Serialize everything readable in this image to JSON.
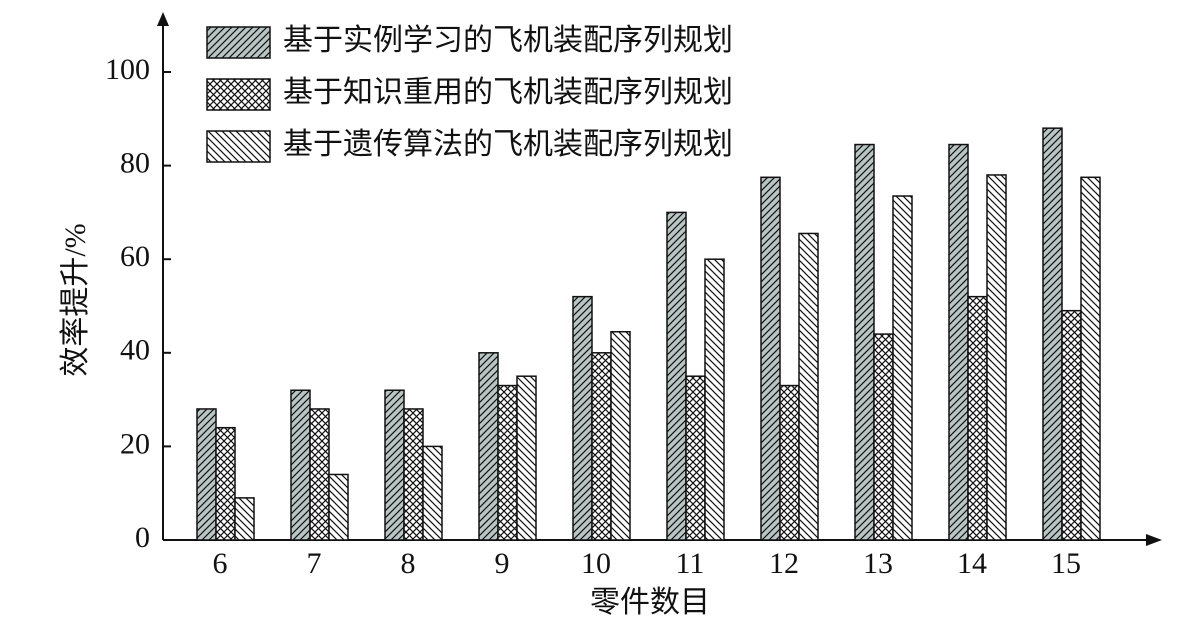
{
  "chart_data": {
    "type": "bar",
    "x_label": "零件数目",
    "y_label": "效率提升/%",
    "categories": [
      "6",
      "7",
      "8",
      "9",
      "10",
      "11",
      "12",
      "13",
      "14",
      "15"
    ],
    "series": [
      {
        "name": "基于实例学习的飞机装配序列规划",
        "color": "#b9c5c5",
        "hatch": "forward",
        "values": [
          28,
          32,
          32,
          40,
          52,
          70,
          77.5,
          84.5,
          84.5,
          88
        ]
      },
      {
        "name": "基于知识重用的飞机装配序列规划",
        "color": "#ffffff",
        "hatch": "cross",
        "values": [
          24,
          28,
          28,
          33,
          40,
          35,
          33,
          44,
          52,
          49
        ]
      },
      {
        "name": "基于遗传算法的飞机装配序列规划",
        "color": "#ffffff",
        "hatch": "backward",
        "values": [
          9,
          14,
          20,
          35,
          44.5,
          60,
          65.5,
          73.5,
          78,
          77.5
        ]
      }
    ],
    "ylim": [
      0,
      112
    ],
    "yticks": [
      0,
      20,
      40,
      60,
      80,
      100
    ],
    "legend": "top-left"
  }
}
